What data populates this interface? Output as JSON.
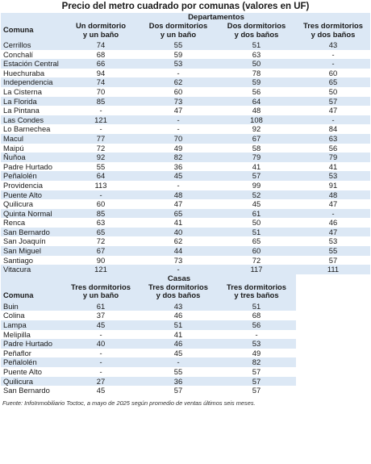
{
  "title": "Precio del metro cuadrado por comunas (valores en UF)",
  "departamentos": {
    "group_label": "Departamentos",
    "headers": [
      [
        "Comuna"
      ],
      [
        "Un dormitorio",
        "y un baño"
      ],
      [
        "Dos dormitorios",
        "y un baño"
      ],
      [
        "Dos dormitorios",
        "y dos baños"
      ],
      [
        "Tres dormitorios",
        "y dos baños"
      ]
    ],
    "rows": [
      [
        "Cerrillos",
        "74",
        "55",
        "51",
        "43"
      ],
      [
        "Conchalí",
        "68",
        "59",
        "63",
        "-"
      ],
      [
        "Estación Central",
        "66",
        "53",
        "50",
        "-"
      ],
      [
        "Huechuraba",
        "94",
        "-",
        "78",
        "60"
      ],
      [
        "Independencia",
        "74",
        "62",
        "59",
        "65"
      ],
      [
        "La Cisterna",
        "70",
        "60",
        "56",
        "50"
      ],
      [
        "La Florida",
        "85",
        "73",
        "64",
        "57"
      ],
      [
        "La Pintana",
        "-",
        "47",
        "48",
        "47"
      ],
      [
        "Las Condes",
        "121",
        "-",
        "108",
        "-"
      ],
      [
        "Lo Barnechea",
        "-",
        "-",
        "92",
        "84"
      ],
      [
        "Macul",
        "77",
        "70",
        "67",
        "63"
      ],
      [
        "Maipú",
        "72",
        "49",
        "58",
        "56"
      ],
      [
        "Ñuñoa",
        "92",
        "82",
        "79",
        "79"
      ],
      [
        "Padre Hurtado",
        "55",
        "36",
        "41",
        "41"
      ],
      [
        "Peñalolén",
        "64",
        "45",
        "57",
        "53"
      ],
      [
        "Providencia",
        "113",
        "-",
        "99",
        "91"
      ],
      [
        "Puente Alto",
        "-",
        "48",
        "52",
        "48"
      ],
      [
        "Quilicura",
        "60",
        "47",
        "45",
        "47"
      ],
      [
        "Quinta Normal",
        "85",
        "65",
        "61",
        "-"
      ],
      [
        "Renca",
        "63",
        "41",
        "50",
        "46"
      ],
      [
        "San Bernardo",
        "65",
        "40",
        "51",
        "47"
      ],
      [
        "San Joaquín",
        "72",
        "62",
        "65",
        "53"
      ],
      [
        "San Miguel",
        "67",
        "44",
        "60",
        "55"
      ],
      [
        "Santiago",
        "90",
        "73",
        "72",
        "57"
      ],
      [
        "Vitacura",
        "121",
        "-",
        "117",
        "111"
      ]
    ]
  },
  "casas": {
    "group_label": "Casas",
    "headers": [
      [
        "Comuna"
      ],
      [
        "Tres dormitorios",
        "y un baño"
      ],
      [
        "Tres dormitorios",
        "y dos baños"
      ],
      [
        "Tres dormitorios",
        "y tres baños"
      ]
    ],
    "rows": [
      [
        "Buin",
        "61",
        "43",
        "51"
      ],
      [
        "Colina",
        "37",
        "46",
        "68"
      ],
      [
        "Lampa",
        "45",
        "51",
        "56"
      ],
      [
        "Melipilla",
        "-",
        "41",
        "-"
      ],
      [
        "Padre Hurtado",
        "40",
        "46",
        "53"
      ],
      [
        "Peñaflor",
        "-",
        "45",
        "49"
      ],
      [
        "Peñalolén",
        "-",
        "-",
        "82"
      ],
      [
        "Puente Alto",
        "-",
        "55",
        "57"
      ],
      [
        "Quilicura",
        "27",
        "36",
        "57"
      ],
      [
        "San Bernardo",
        "45",
        "57",
        "57"
      ]
    ]
  },
  "source": "Fuente: InfoInmobiliario Toctoc, a mayo de 2025 según promedio de ventas últimos seis meses."
}
